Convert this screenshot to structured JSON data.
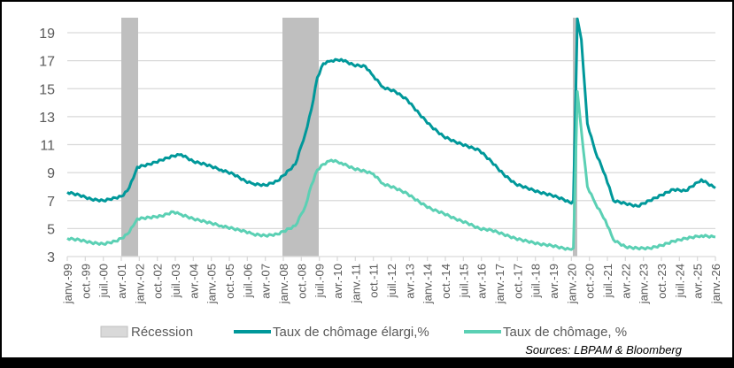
{
  "chart_data": {
    "type": "line",
    "title": "",
    "xlabel": "",
    "ylabel": "",
    "ylim": [
      3,
      20
    ],
    "yticks": [
      3,
      5,
      7,
      9,
      11,
      13,
      15,
      17,
      19
    ],
    "grid": true,
    "legend_position": "bottom",
    "x_tick_labels": [
      "janv.-99",
      "oct.-99",
      "juil.-00",
      "avr.-01",
      "janv.-02",
      "oct.-02",
      "juil.-03",
      "avr.-04",
      "janv.-05",
      "oct.-05",
      "juil.-06",
      "avr.-07",
      "janv.-08",
      "oct.-08",
      "juil.-09",
      "avr.-10",
      "janv.-11",
      "oct.-11",
      "juil.-12",
      "avr.-13",
      "janv.-14",
      "oct.-14",
      "juil.-15",
      "avr.-16",
      "janv.-17",
      "oct.-17",
      "juil.-18",
      "avr.-19",
      "janv.-20",
      "oct.-20",
      "juil.-21",
      "avr.-22",
      "janv.-23",
      "oct.-23",
      "juil.-24",
      "avr.-25",
      "janv.-26"
    ],
    "recessions": [
      {
        "start": "avr.-01",
        "end": "nov.-01"
      },
      {
        "start": "janv.-08",
        "end": "juin-09"
      },
      {
        "start": "févr.-20",
        "end": "avr.-20"
      }
    ],
    "series": [
      {
        "name": "Taux de chômage élargi,%",
        "color": "#00989A",
        "points": [
          [
            "1999-01",
            7.6
          ],
          [
            "1999-07",
            7.4
          ],
          [
            "2000-01",
            7.1
          ],
          [
            "2000-07",
            7.0
          ],
          [
            "2001-01",
            7.2
          ],
          [
            "2001-04",
            7.3
          ],
          [
            "2001-07",
            7.7
          ],
          [
            "2001-10",
            8.6
          ],
          [
            "2001-12",
            9.4
          ],
          [
            "2002-06",
            9.6
          ],
          [
            "2002-12",
            9.9
          ],
          [
            "2003-06",
            10.2
          ],
          [
            "2003-10",
            10.3
          ],
          [
            "2004-04",
            9.8
          ],
          [
            "2004-10",
            9.6
          ],
          [
            "2005-06",
            9.2
          ],
          [
            "2005-12",
            8.9
          ],
          [
            "2006-06",
            8.4
          ],
          [
            "2006-10",
            8.2
          ],
          [
            "2007-04",
            8.1
          ],
          [
            "2007-10",
            8.4
          ],
          [
            "2008-01",
            8.8
          ],
          [
            "2008-07",
            9.6
          ],
          [
            "2008-12",
            11.8
          ],
          [
            "2009-03",
            13.5
          ],
          [
            "2009-06",
            15.8
          ],
          [
            "2009-09",
            16.8
          ],
          [
            "2010-01",
            17.0
          ],
          [
            "2010-06",
            17.1
          ],
          [
            "2010-12",
            16.7
          ],
          [
            "2011-06",
            16.6
          ],
          [
            "2011-10",
            15.9
          ],
          [
            "2012-03",
            15.1
          ],
          [
            "2012-09",
            14.8
          ],
          [
            "2013-03",
            14.2
          ],
          [
            "2013-09",
            13.2
          ],
          [
            "2014-03",
            12.3
          ],
          [
            "2014-09",
            11.6
          ],
          [
            "2015-03",
            11.2
          ],
          [
            "2015-09",
            10.9
          ],
          [
            "2016-03",
            10.6
          ],
          [
            "2016-09",
            9.8
          ],
          [
            "2017-03",
            8.9
          ],
          [
            "2017-09",
            8.2
          ],
          [
            "2018-03",
            7.9
          ],
          [
            "2018-09",
            7.6
          ],
          [
            "2019-03",
            7.4
          ],
          [
            "2019-09",
            7.1
          ],
          [
            "2020-01",
            6.8
          ],
          [
            "2020-02",
            7.0
          ],
          [
            "2020-04",
            20.0
          ],
          [
            "2020-06",
            18.5
          ],
          [
            "2020-09",
            12.5
          ],
          [
            "2021-01",
            10.5
          ],
          [
            "2021-06",
            8.8
          ],
          [
            "2021-10",
            7.0
          ],
          [
            "2022-04",
            6.8
          ],
          [
            "2022-10",
            6.6
          ],
          [
            "2023-04",
            7.0
          ],
          [
            "2023-10",
            7.4
          ],
          [
            "2024-04",
            7.8
          ],
          [
            "2024-10",
            7.7
          ],
          [
            "2025-06",
            8.5
          ],
          [
            "2026-01",
            7.9
          ]
        ]
      },
      {
        "name": "Taux de chômage, %",
        "color": "#5BD0B4",
        "points": [
          [
            "1999-01",
            4.3
          ],
          [
            "1999-07",
            4.2
          ],
          [
            "2000-01",
            4.0
          ],
          [
            "2000-07",
            3.9
          ],
          [
            "2001-01",
            4.1
          ],
          [
            "2001-04",
            4.3
          ],
          [
            "2001-07",
            4.6
          ],
          [
            "2001-10",
            5.2
          ],
          [
            "2001-12",
            5.7
          ],
          [
            "2002-06",
            5.8
          ],
          [
            "2002-12",
            5.9
          ],
          [
            "2003-06",
            6.2
          ],
          [
            "2003-10",
            6.0
          ],
          [
            "2004-04",
            5.7
          ],
          [
            "2004-10",
            5.5
          ],
          [
            "2005-06",
            5.2
          ],
          [
            "2005-12",
            5.0
          ],
          [
            "2006-06",
            4.8
          ],
          [
            "2006-10",
            4.6
          ],
          [
            "2007-04",
            4.5
          ],
          [
            "2007-10",
            4.6
          ],
          [
            "2008-01",
            4.8
          ],
          [
            "2008-07",
            5.2
          ],
          [
            "2008-12",
            6.6
          ],
          [
            "2009-03",
            8.1
          ],
          [
            "2009-06",
            9.2
          ],
          [
            "2009-09",
            9.6
          ],
          [
            "2010-01",
            9.9
          ],
          [
            "2010-06",
            9.7
          ],
          [
            "2010-12",
            9.3
          ],
          [
            "2011-06",
            9.1
          ],
          [
            "2011-10",
            8.9
          ],
          [
            "2012-03",
            8.2
          ],
          [
            "2012-09",
            7.9
          ],
          [
            "2013-03",
            7.5
          ],
          [
            "2013-09",
            6.9
          ],
          [
            "2014-03",
            6.4
          ],
          [
            "2014-09",
            6.1
          ],
          [
            "2015-03",
            5.7
          ],
          [
            "2015-09",
            5.4
          ],
          [
            "2016-03",
            5.0
          ],
          [
            "2016-09",
            4.9
          ],
          [
            "2017-03",
            4.6
          ],
          [
            "2017-09",
            4.3
          ],
          [
            "2018-03",
            4.1
          ],
          [
            "2018-09",
            3.9
          ],
          [
            "2019-03",
            3.8
          ],
          [
            "2019-09",
            3.6
          ],
          [
            "2020-01",
            3.5
          ],
          [
            "2020-02",
            3.6
          ],
          [
            "2020-04",
            14.8
          ],
          [
            "2020-06",
            12.0
          ],
          [
            "2020-09",
            8.0
          ],
          [
            "2021-01",
            6.8
          ],
          [
            "2021-06",
            5.6
          ],
          [
            "2021-10",
            4.2
          ],
          [
            "2022-04",
            3.7
          ],
          [
            "2022-10",
            3.6
          ],
          [
            "2023-04",
            3.6
          ],
          [
            "2023-10",
            3.8
          ],
          [
            "2024-04",
            4.1
          ],
          [
            "2024-10",
            4.3
          ],
          [
            "2025-06",
            4.5
          ],
          [
            "2026-01",
            4.4
          ]
        ]
      }
    ]
  },
  "legend": {
    "recession": "Récession",
    "broad": "Taux de chômage élargi,%",
    "official": "Taux de chômage, %"
  },
  "source": "Sources: LBPAM & Bloomberg",
  "colors": {
    "recession": "#BFBFBF",
    "broad": "#00989A",
    "official": "#5BD0B4",
    "grid": "#D9D9D9",
    "text": "#595959"
  }
}
